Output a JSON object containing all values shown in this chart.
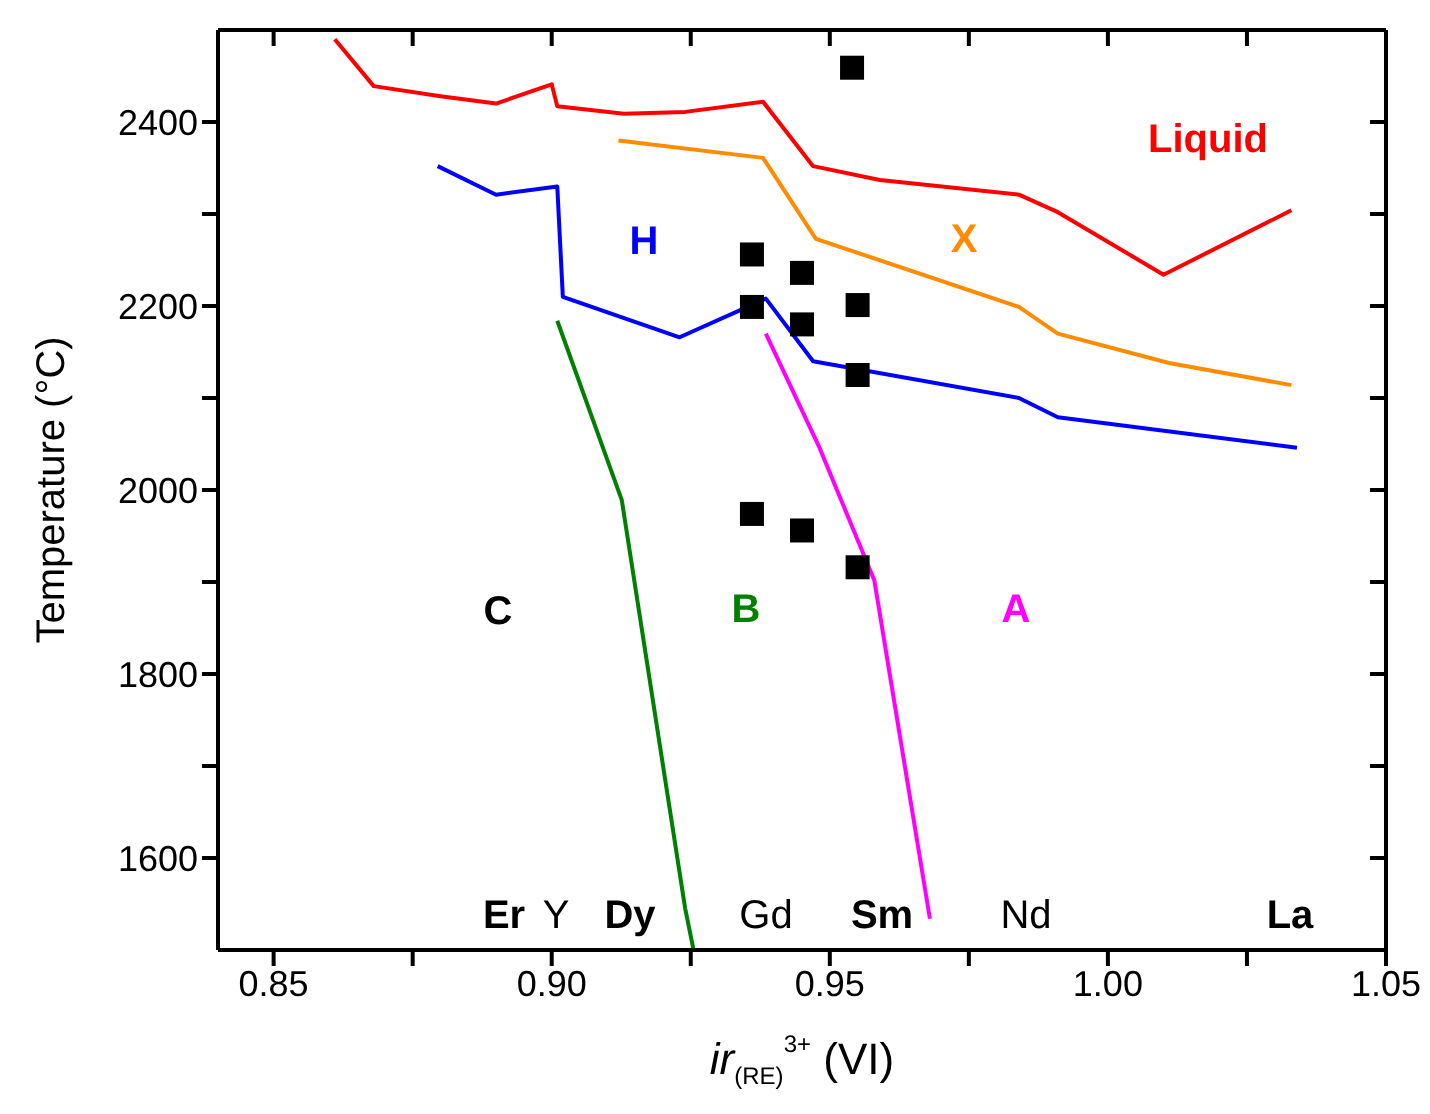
{
  "chart_data": {
    "type": "line",
    "xlabel": "ir$_{(RE)}$$^{3+}$ (VI)",
    "ylabel": "Temperature (°C)",
    "xlim": [
      0.84,
      1.05
    ],
    "ylim": [
      1500,
      2500
    ],
    "xticks": [
      0.85,
      {
        "value": 0.875,
        "label": null
      },
      {
        "value": 0.9,
        "label": "0.90"
      },
      {
        "value": 0.925,
        "label": null
      },
      0.95,
      {
        "value": 0.975,
        "label": null
      },
      {
        "value": 1.0,
        "label": "1.00"
      },
      {
        "value": 1.025,
        "label": null
      },
      1.05
    ],
    "yticks": [
      1600,
      {
        "value": 1700,
        "label": null
      },
      1800,
      {
        "value": 1900,
        "label": null
      },
      2000,
      {
        "value": 2100,
        "label": null
      },
      2200,
      {
        "value": 2300,
        "label": null
      },
      2400
    ],
    "legend": false,
    "series": [
      {
        "color": "#ff0000",
        "x": [
          0.861,
          0.868,
          0.88,
          0.89,
          0.9,
          0.901,
          0.913,
          0.924,
          0.938,
          0.947,
          0.959,
          0.984,
          0.991,
          1.01,
          1.033
        ],
        "values": [
          2490,
          2439,
          2428,
          2420,
          2441,
          2417,
          2409,
          2411,
          2422,
          2352,
          2337,
          2321,
          2302,
          2234,
          2304
        ]
      },
      {
        "color": "#ff8c00",
        "x": [
          0.912,
          0.938,
          0.9475,
          0.984,
          0.991,
          1.011,
          1.033
        ],
        "values": [
          2380,
          2361,
          2273,
          2199,
          2170,
          2138,
          2114
        ]
      },
      {
        "color": "#0000ff",
        "x": [
          0.8795,
          0.89,
          0.901,
          0.902,
          0.923,
          0.9385,
          0.947,
          0.984,
          0.991,
          1.034
        ],
        "values": [
          2352,
          2321,
          2330,
          2210,
          2166,
          2208,
          2140,
          2100,
          2079,
          2046
        ]
      },
      {
        "color": "#008000",
        "x": [
          0.901,
          0.9126,
          0.924,
          0.9255
        ],
        "values": [
          2184,
          1989,
          1545,
          1500
        ]
      },
      {
        "color": "#ff00ff",
        "x": [
          0.9385,
          0.948,
          0.958,
          0.968
        ],
        "values": [
          2170,
          2048,
          1902,
          1534
        ]
      },
      {
        "type": "scatter",
        "color": "#000000",
        "marker": "square",
        "x": [
          0.954,
          0.936,
          0.945,
          0.936,
          0.945,
          0.955,
          0.955,
          0.936,
          0.945,
          0.955
        ],
        "values": [
          2459,
          2256,
          2236,
          2199,
          2180,
          2201,
          2125,
          1974,
          1956,
          1916
        ]
      }
    ],
    "annotations": [
      "Liquid",
      "X",
      "H",
      "C",
      "B",
      "A",
      "Er",
      "Y",
      "Dy",
      "Gd",
      "Sm",
      "Nd",
      "La"
    ]
  }
}
